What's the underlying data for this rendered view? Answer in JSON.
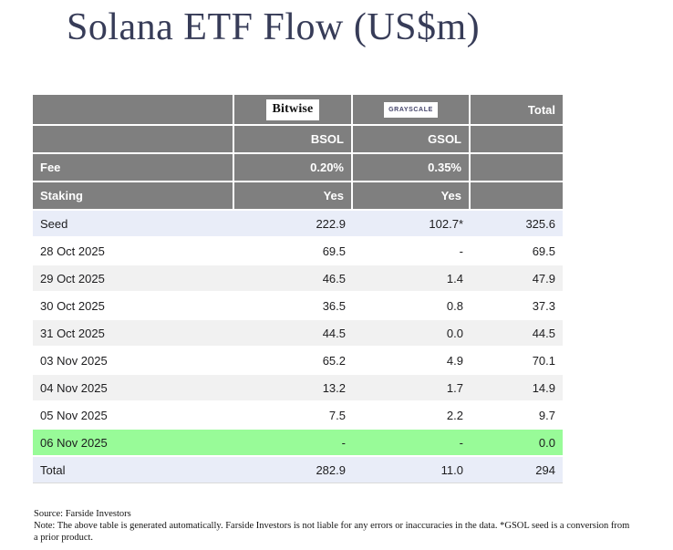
{
  "title": "Solana ETF Flow (US$m)",
  "chart_data": {
    "type": "table",
    "title": "Solana ETF Flow (US$m)",
    "header": {
      "bitwise_logo": "Bitwise",
      "grayscale_logo": "GRAYSCALE",
      "total_label": "Total",
      "bsol_ticker": "BSOL",
      "gsol_ticker": "GSOL",
      "fee_label": "Fee",
      "fee_bsol": "0.20%",
      "fee_gsol": "0.35%",
      "staking_label": "Staking",
      "staking_bsol": "Yes",
      "staking_gsol": "Yes"
    },
    "columns": [
      "",
      "BSOL",
      "GSOL",
      "Total"
    ],
    "rows": [
      {
        "label": "Seed",
        "bsol": "222.9",
        "gsol": "102.7*",
        "total": "325.6",
        "bg": "lavender"
      },
      {
        "label": "28 Oct 2025",
        "bsol": "69.5",
        "gsol": "-",
        "total": "69.5",
        "bg": "white"
      },
      {
        "label": "29 Oct 2025",
        "bsol": "46.5",
        "gsol": "1.4",
        "total": "47.9",
        "bg": "gray"
      },
      {
        "label": "30 Oct 2025",
        "bsol": "36.5",
        "gsol": "0.8",
        "total": "37.3",
        "bg": "white"
      },
      {
        "label": "31 Oct 2025",
        "bsol": "44.5",
        "gsol": "0.0",
        "total": "44.5",
        "bg": "gray"
      },
      {
        "label": "03 Nov 2025",
        "bsol": "65.2",
        "gsol": "4.9",
        "total": "70.1",
        "bg": "white"
      },
      {
        "label": "04 Nov 2025",
        "bsol": "13.2",
        "gsol": "1.7",
        "total": "14.9",
        "bg": "gray"
      },
      {
        "label": "05 Nov 2025",
        "bsol": "7.5",
        "gsol": "2.2",
        "total": "9.7",
        "bg": "white"
      },
      {
        "label": "06 Nov 2025",
        "bsol": "-",
        "gsol": "-",
        "total": "0.0",
        "bg": "green"
      },
      {
        "label": "Total",
        "bsol": "282.9",
        "gsol": "11.0",
        "total": "294",
        "bg": "lavender"
      }
    ]
  },
  "footer": {
    "source": "Source: Farside Investors",
    "note": "Note: The above table is generated automatically. Farside Investors is not liable for any errors or inaccuracies in the data. *GSOL seed is a conversion from a prior product."
  },
  "colors": {
    "header_bg": "#7f7f7f",
    "lavender_row": "#e9edf8",
    "gray_row": "#f1f1f1",
    "green_row": "#98fb98",
    "title_color": "#373c58",
    "grayscale_logo_color": "#44446a"
  }
}
